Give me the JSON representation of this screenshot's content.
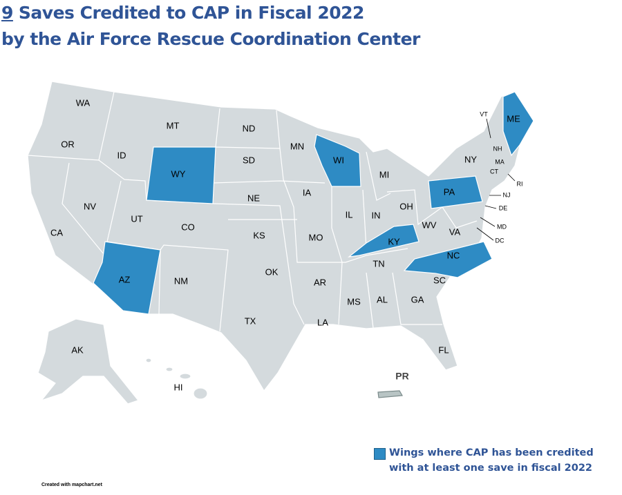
{
  "title": {
    "count": "9",
    "line1": "Saves Credited to CAP in Fiscal 2022",
    "line2": "by the Air Force Rescue Coordination Center"
  },
  "map": {
    "base_color": "#d4dadd",
    "states": [
      {
        "label": "WA",
        "highlighted": false
      },
      {
        "label": "OR",
        "highlighted": false
      },
      {
        "label": "CA",
        "highlighted": false
      },
      {
        "label": "NV",
        "highlighted": false
      },
      {
        "label": "ID",
        "highlighted": false
      },
      {
        "label": "MT",
        "highlighted": false
      },
      {
        "label": "WY",
        "highlighted": true
      },
      {
        "label": "UT",
        "highlighted": false
      },
      {
        "label": "CO",
        "highlighted": false
      },
      {
        "label": "AZ",
        "highlighted": true
      },
      {
        "label": "NM",
        "highlighted": false
      },
      {
        "label": "ND",
        "highlighted": false
      },
      {
        "label": "SD",
        "highlighted": false
      },
      {
        "label": "NE",
        "highlighted": false
      },
      {
        "label": "KS",
        "highlighted": false
      },
      {
        "label": "OK",
        "highlighted": false
      },
      {
        "label": "TX",
        "highlighted": false
      },
      {
        "label": "MN",
        "highlighted": false
      },
      {
        "label": "IA",
        "highlighted": false
      },
      {
        "label": "MO",
        "highlighted": false
      },
      {
        "label": "AR",
        "highlighted": false
      },
      {
        "label": "LA",
        "highlighted": false
      },
      {
        "label": "WI",
        "highlighted": true
      },
      {
        "label": "IL",
        "highlighted": false
      },
      {
        "label": "MI",
        "highlighted": false
      },
      {
        "label": "IN",
        "highlighted": false
      },
      {
        "label": "OH",
        "highlighted": false
      },
      {
        "label": "KY",
        "highlighted": true
      },
      {
        "label": "TN",
        "highlighted": false
      },
      {
        "label": "MS",
        "highlighted": false
      },
      {
        "label": "AL",
        "highlighted": false
      },
      {
        "label": "GA",
        "highlighted": false
      },
      {
        "label": "FL",
        "highlighted": false
      },
      {
        "label": "SC",
        "highlighted": false
      },
      {
        "label": "NC",
        "highlighted": true
      },
      {
        "label": "VA",
        "highlighted": false
      },
      {
        "label": "WV",
        "highlighted": false
      },
      {
        "label": "PA",
        "highlighted": true
      },
      {
        "label": "NY",
        "highlighted": false
      },
      {
        "label": "ME",
        "highlighted": true
      },
      {
        "label": "VT",
        "highlighted": false
      },
      {
        "label": "NH",
        "highlighted": false
      },
      {
        "label": "MA",
        "highlighted": false
      },
      {
        "label": "CT",
        "highlighted": false
      },
      {
        "label": "RI",
        "highlighted": false
      },
      {
        "label": "NJ",
        "highlighted": false
      },
      {
        "label": "DE",
        "highlighted": false
      },
      {
        "label": "MD",
        "highlighted": false
      },
      {
        "label": "DC",
        "highlighted": false
      },
      {
        "label": "AK",
        "highlighted": false
      },
      {
        "label": "HI",
        "highlighted": false
      }
    ],
    "territory": "PR"
  },
  "legend": {
    "color": "#2e8bc4",
    "lines": [
      "Wings where CAP has been credited",
      "with at least one save in fiscal 2022"
    ]
  },
  "credit": "Created with mapchart.net"
}
